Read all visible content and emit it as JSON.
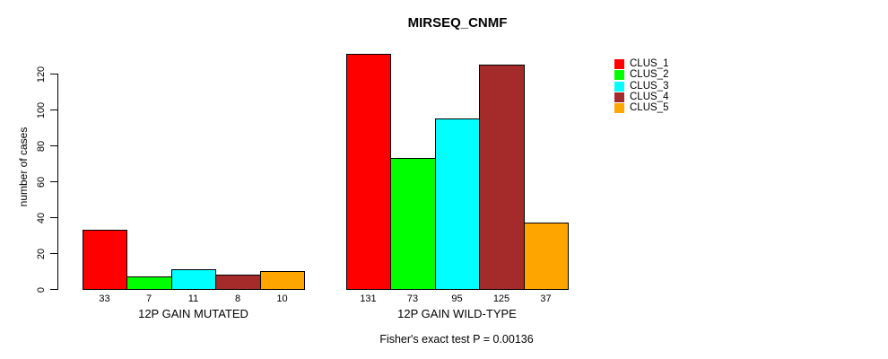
{
  "chart_data": {
    "type": "bar",
    "title": "MIRSEQ_CNMF",
    "ylabel": "number of cases",
    "footnote": "Fisher's exact test P = 0.00136",
    "ylim": [
      0,
      131
    ],
    "yticks": [
      0,
      20,
      40,
      60,
      80,
      100,
      120
    ],
    "grid": false,
    "bar_value_labels": true,
    "legend_position": "right",
    "categories": [
      "12P GAIN MUTATED",
      "12P GAIN WILD-TYPE"
    ],
    "groups": [
      {
        "label": "12P GAIN MUTATED",
        "values": [
          33,
          7,
          11,
          8,
          10
        ]
      },
      {
        "label": "12P GAIN WILD-TYPE",
        "values": [
          131,
          73,
          95,
          125,
          37
        ]
      }
    ],
    "series": [
      {
        "name": "CLUS_1",
        "color": "#FF0000"
      },
      {
        "name": "CLUS_2",
        "color": "#00FF00"
      },
      {
        "name": "CLUS_3",
        "color": "#00FFFF"
      },
      {
        "name": "CLUS_4",
        "color": "#A52A2A"
      },
      {
        "name": "CLUS_5",
        "color": "#FFA500"
      }
    ]
  }
}
